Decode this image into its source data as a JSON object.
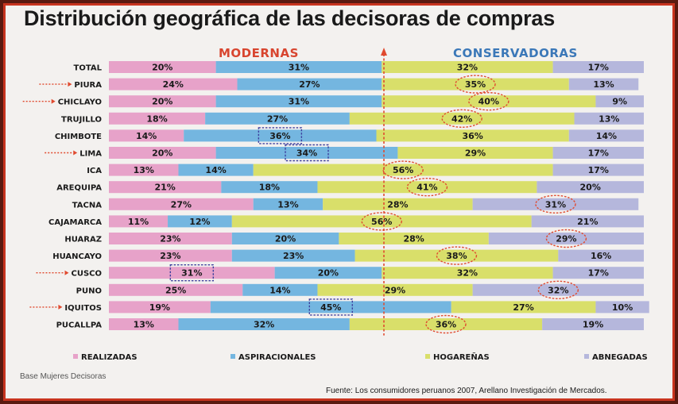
{
  "title": "Distribución geográfica de las decisoras de compras",
  "groups": {
    "left": "MODERNAS",
    "right": "CONSERVADORAS"
  },
  "colors": {
    "realizadas": "#e7a2c9",
    "aspiracionales": "#74b6e0",
    "hogarenas": "#d9df6a",
    "abnegadas": "#b5b7dc",
    "highlight_circle": "#e04a2f",
    "highlight_box": "#3d3f9e",
    "arrow": "#e04a2f"
  },
  "legend": [
    "REALIZADAS",
    "ASPIRACIONALES",
    "HOGAREÑAS",
    "ABNEGADAS"
  ],
  "footer": {
    "base": "Base Mujeres Decisoras",
    "source": "Fuente: Los consumidores peruanos 2007, Arellano Investigación de Mercados."
  },
  "chart_data": {
    "type": "bar",
    "orientation": "horizontal",
    "stacked": true,
    "percent": true,
    "categories": [
      "TOTAL",
      "PIURA",
      "CHICLAYO",
      "TRUJILLO",
      "CHIMBOTE",
      "LIMA",
      "ICA",
      "AREQUIPA",
      "TACNA",
      "CAJAMARCA",
      "HUARAZ",
      "HUANCAYO",
      "CUSCO",
      "PUNO",
      "IQUITOS",
      "PUCALLPA"
    ],
    "series": [
      {
        "name": "REALIZADAS",
        "values": [
          20,
          24,
          20,
          18,
          14,
          20,
          13,
          21,
          27,
          11,
          23,
          23,
          31,
          25,
          19,
          13
        ]
      },
      {
        "name": "ASPIRACIONALES",
        "values": [
          31,
          27,
          31,
          27,
          36,
          34,
          14,
          18,
          13,
          12,
          20,
          23,
          20,
          14,
          45,
          32
        ]
      },
      {
        "name": "HOGAREÑAS",
        "values": [
          32,
          35,
          40,
          42,
          36,
          29,
          56,
          41,
          28,
          56,
          28,
          38,
          32,
          29,
          27,
          36
        ]
      },
      {
        "name": "ABNEGADAS",
        "values": [
          17,
          13,
          9,
          13,
          14,
          17,
          17,
          20,
          31,
          21,
          29,
          16,
          17,
          32,
          10,
          19
        ]
      }
    ],
    "arrows": [
      "PIURA",
      "CHICLAYO",
      "LIMA",
      "CUSCO",
      "IQUITOS"
    ],
    "circled": [
      [
        1,
        2
      ],
      [
        2,
        2
      ],
      [
        3,
        2
      ],
      [
        6,
        2
      ],
      [
        7,
        2
      ],
      [
        8,
        3
      ],
      [
        9,
        2
      ],
      [
        10,
        3
      ],
      [
        11,
        2
      ],
      [
        13,
        3
      ],
      [
        15,
        2
      ]
    ],
    "boxed": [
      [
        4,
        1
      ],
      [
        5,
        1
      ],
      [
        12,
        0
      ],
      [
        14,
        1
      ]
    ],
    "legend_position": "bottom"
  }
}
